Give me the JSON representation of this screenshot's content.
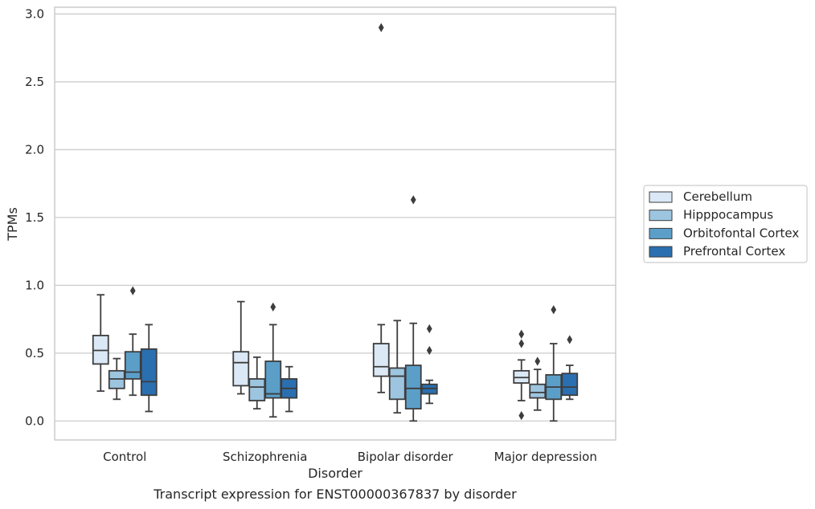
{
  "chart_data": {
    "type": "box",
    "xlabel": "Disorder",
    "ylabel": "TPMs",
    "categories": [
      "Control",
      "Schizophrenia",
      "Bipolar disorder",
      "Major depression"
    ],
    "ylim": [
      -0.14,
      3.05
    ],
    "yticks": [
      "0.0",
      "0.5",
      "1.0",
      "1.5",
      "2.0",
      "2.5",
      "3.0"
    ],
    "grid": true,
    "legend_position": "right",
    "series": [
      {
        "name": "Cerebellum",
        "color": "#dbe8f5",
        "boxes": [
          {
            "whisker_low": 0.22,
            "q1": 0.42,
            "median": 0.52,
            "q3": 0.63,
            "whisker_high": 0.93,
            "outliers": []
          },
          {
            "whisker_low": 0.2,
            "q1": 0.26,
            "median": 0.43,
            "q3": 0.51,
            "whisker_high": 0.88,
            "outliers": []
          },
          {
            "whisker_low": 0.21,
            "q1": 0.33,
            "median": 0.4,
            "q3": 0.57,
            "whisker_high": 0.71,
            "outliers": [
              2.9
            ]
          },
          {
            "whisker_low": 0.15,
            "q1": 0.28,
            "median": 0.32,
            "q3": 0.37,
            "whisker_high": 0.45,
            "outliers": [
              0.64,
              0.57,
              0.04
            ]
          }
        ]
      },
      {
        "name": "Hipppocampus",
        "color": "#9dc5e0",
        "boxes": [
          {
            "whisker_low": 0.16,
            "q1": 0.24,
            "median": 0.31,
            "q3": 0.37,
            "whisker_high": 0.46,
            "outliers": []
          },
          {
            "whisker_low": 0.09,
            "q1": 0.15,
            "median": 0.25,
            "q3": 0.31,
            "whisker_high": 0.47,
            "outliers": []
          },
          {
            "whisker_low": 0.06,
            "q1": 0.16,
            "median": 0.33,
            "q3": 0.39,
            "whisker_high": 0.74,
            "outliers": []
          },
          {
            "whisker_low": 0.08,
            "q1": 0.17,
            "median": 0.21,
            "q3": 0.27,
            "whisker_high": 0.38,
            "outliers": [
              0.44
            ]
          }
        ]
      },
      {
        "name": "Orbitofontal Cortex",
        "color": "#5b9fc9",
        "boxes": [
          {
            "whisker_low": 0.19,
            "q1": 0.31,
            "median": 0.36,
            "q3": 0.51,
            "whisker_high": 0.64,
            "outliers": [
              0.96
            ]
          },
          {
            "whisker_low": 0.03,
            "q1": 0.17,
            "median": 0.2,
            "q3": 0.44,
            "whisker_high": 0.71,
            "outliers": [
              0.84
            ]
          },
          {
            "whisker_low": 0.0,
            "q1": 0.09,
            "median": 0.24,
            "q3": 0.41,
            "whisker_high": 0.72,
            "outliers": [
              1.63
            ]
          },
          {
            "whisker_low": 0.0,
            "q1": 0.16,
            "median": 0.25,
            "q3": 0.34,
            "whisker_high": 0.57,
            "outliers": [
              0.82
            ]
          }
        ]
      },
      {
        "name": "Prefrontal Cortex",
        "color": "#2a6fb0",
        "boxes": [
          {
            "whisker_low": 0.07,
            "q1": 0.19,
            "median": 0.29,
            "q3": 0.53,
            "whisker_high": 0.71,
            "outliers": []
          },
          {
            "whisker_low": 0.07,
            "q1": 0.17,
            "median": 0.24,
            "q3": 0.31,
            "whisker_high": 0.4,
            "outliers": []
          },
          {
            "whisker_low": 0.13,
            "q1": 0.2,
            "median": 0.24,
            "q3": 0.27,
            "whisker_high": 0.3,
            "outliers": [
              0.68,
              0.52
            ]
          },
          {
            "whisker_low": 0.16,
            "q1": 0.19,
            "median": 0.25,
            "q3": 0.35,
            "whisker_high": 0.41,
            "outliers": [
              0.6
            ]
          }
        ]
      }
    ]
  },
  "caption": "Transcript expression for ENST00000367837 by disorder",
  "colors": {
    "grid": "#cccccc",
    "frame": "#cccccc",
    "box_edge": "#3d3d3d",
    "background": "#ffffff"
  }
}
